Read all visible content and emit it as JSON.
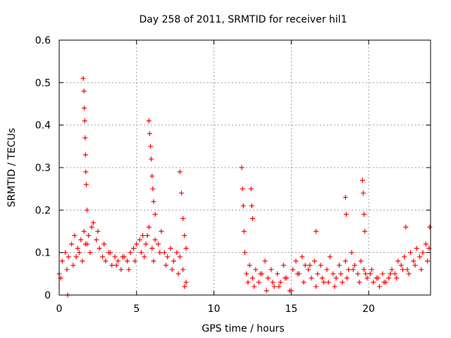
{
  "chart_data": {
    "type": "scatter",
    "title": "Day 258 of 2011, SRMTID for receiver hil1",
    "xlabel": "GPS time / hours",
    "ylabel": "SRMTID / TECUs",
    "xlim": [
      0,
      24
    ],
    "ylim": [
      0,
      0.6
    ],
    "xticks": [
      0,
      5,
      10,
      15,
      20
    ],
    "xtick_labels": [
      "0",
      "5",
      "10",
      "15",
      "20"
    ],
    "yticks": [
      0,
      0.1,
      0.2,
      0.3,
      0.4,
      0.5,
      0.6
    ],
    "ytick_labels": [
      "0",
      "0.1",
      "0.2",
      "0.3",
      "0.4",
      "0.5",
      "0.6"
    ],
    "grid": true,
    "legend": "none",
    "marker": "plus",
    "series_color": "#ff0000",
    "series": [
      {
        "name": "hil1",
        "x": [
          0.0,
          0.2,
          0.4,
          0.6,
          0.8,
          1.0,
          1.2,
          1.4,
          1.6,
          1.8,
          2.0,
          2.2,
          2.4,
          2.6,
          2.8,
          3.0,
          3.2,
          3.4,
          3.6,
          3.8,
          4.0,
          4.2,
          4.4,
          4.6,
          4.8,
          5.0,
          5.2,
          5.4,
          5.6,
          5.8,
          6.0,
          6.2,
          6.4,
          6.6,
          6.8,
          7.0,
          7.2,
          7.4,
          7.6,
          7.8,
          8.0,
          8.2,
          0.1,
          0.5,
          0.9,
          1.1,
          1.3,
          1.5,
          1.7,
          1.9,
          2.1,
          2.5,
          2.9,
          3.3,
          3.7,
          4.1,
          4.5,
          4.9,
          5.3,
          5.5,
          5.7,
          6.1,
          6.5,
          6.9,
          7.3,
          7.7,
          8.1,
          1.55,
          1.6,
          1.62,
          1.65,
          1.68,
          1.7,
          1.72,
          1.75,
          1.8,
          5.8,
          5.85,
          5.9,
          5.95,
          6.0,
          6.05,
          6.1,
          6.2,
          7.8,
          7.9,
          8.0,
          8.1,
          8.2,
          0.55,
          11.8,
          11.85,
          11.9,
          11.95,
          12.0,
          12.1,
          12.3,
          12.5,
          12.7,
          12.9,
          13.1,
          13.3,
          13.5,
          13.7,
          13.9,
          14.1,
          14.3,
          14.5,
          14.7,
          14.9,
          15.1,
          15.3,
          15.5,
          15.7,
          15.9,
          16.1,
          16.3,
          16.5,
          16.7,
          16.9,
          17.1,
          17.3,
          17.5,
          17.7,
          17.9,
          18.1,
          18.3,
          18.5,
          18.7,
          18.9,
          19.1,
          19.3,
          19.5,
          19.7,
          19.9,
          20.1,
          20.3,
          20.5,
          20.7,
          20.9,
          21.1,
          21.3,
          21.5,
          21.7,
          21.9,
          22.1,
          22.3,
          22.5,
          22.7,
          22.9,
          23.1,
          23.3,
          23.5,
          23.7,
          23.9,
          12.2,
          12.6,
          13.0,
          13.4,
          13.8,
          14.2,
          14.6,
          15.0,
          15.4,
          15.8,
          16.2,
          16.6,
          17.0,
          17.4,
          17.8,
          18.2,
          18.6,
          19.0,
          19.4,
          19.8,
          20.2,
          20.6,
          21.0,
          21.4,
          21.8,
          22.2,
          22.6,
          23.0,
          23.4,
          23.8,
          12.4,
          12.45,
          12.5,
          16.6,
          18.5,
          18.55,
          19.6,
          19.65,
          19.7,
          19.75,
          22.4,
          23.95
        ],
        "y": [
          0.05,
          0.08,
          0.1,
          0.09,
          0.12,
          0.14,
          0.11,
          0.13,
          0.15,
          0.12,
          0.1,
          0.17,
          0.13,
          0.11,
          0.09,
          0.08,
          0.1,
          0.07,
          0.09,
          0.08,
          0.06,
          0.09,
          0.08,
          0.1,
          0.11,
          0.12,
          0.13,
          0.14,
          0.12,
          0.16,
          0.11,
          0.13,
          0.12,
          0.15,
          0.1,
          0.09,
          0.11,
          0.08,
          0.1,
          0.09,
          0.06,
          0.03,
          0.04,
          0.06,
          0.07,
          0.09,
          0.1,
          0.08,
          0.12,
          0.14,
          0.16,
          0.15,
          0.12,
          0.1,
          0.07,
          0.09,
          0.06,
          0.08,
          0.1,
          0.09,
          0.14,
          0.08,
          0.1,
          0.07,
          0.06,
          0.05,
          0.02,
          0.51,
          0.48,
          0.44,
          0.41,
          0.37,
          0.33,
          0.29,
          0.26,
          0.2,
          0.41,
          0.38,
          0.35,
          0.32,
          0.28,
          0.25,
          0.22,
          0.19,
          0.29,
          0.24,
          0.18,
          0.14,
          0.11,
          0.0,
          0.3,
          0.25,
          0.21,
          0.15,
          0.1,
          0.05,
          0.07,
          0.04,
          0.06,
          0.03,
          0.05,
          0.08,
          0.04,
          0.06,
          0.02,
          0.05,
          0.03,
          0.07,
          0.04,
          0.01,
          0.06,
          0.08,
          0.05,
          0.09,
          0.07,
          0.06,
          0.04,
          0.08,
          0.05,
          0.07,
          0.03,
          0.06,
          0.09,
          0.05,
          0.04,
          0.07,
          0.03,
          0.08,
          0.06,
          0.1,
          0.07,
          0.05,
          0.08,
          0.06,
          0.04,
          0.05,
          0.03,
          0.04,
          0.02,
          0.05,
          0.03,
          0.04,
          0.06,
          0.05,
          0.08,
          0.07,
          0.09,
          0.06,
          0.1,
          0.08,
          0.11,
          0.09,
          0.1,
          0.12,
          0.11,
          0.03,
          0.02,
          0.05,
          0.01,
          0.03,
          0.02,
          0.04,
          0.01,
          0.05,
          0.03,
          0.07,
          0.02,
          0.04,
          0.03,
          0.02,
          0.05,
          0.04,
          0.06,
          0.03,
          0.05,
          0.06,
          0.04,
          0.03,
          0.05,
          0.04,
          0.06,
          0.05,
          0.07,
          0.06,
          0.08,
          0.25,
          0.21,
          0.18,
          0.15,
          0.23,
          0.19,
          0.27,
          0.24,
          0.19,
          0.15,
          0.16,
          0.16
        ]
      }
    ]
  }
}
